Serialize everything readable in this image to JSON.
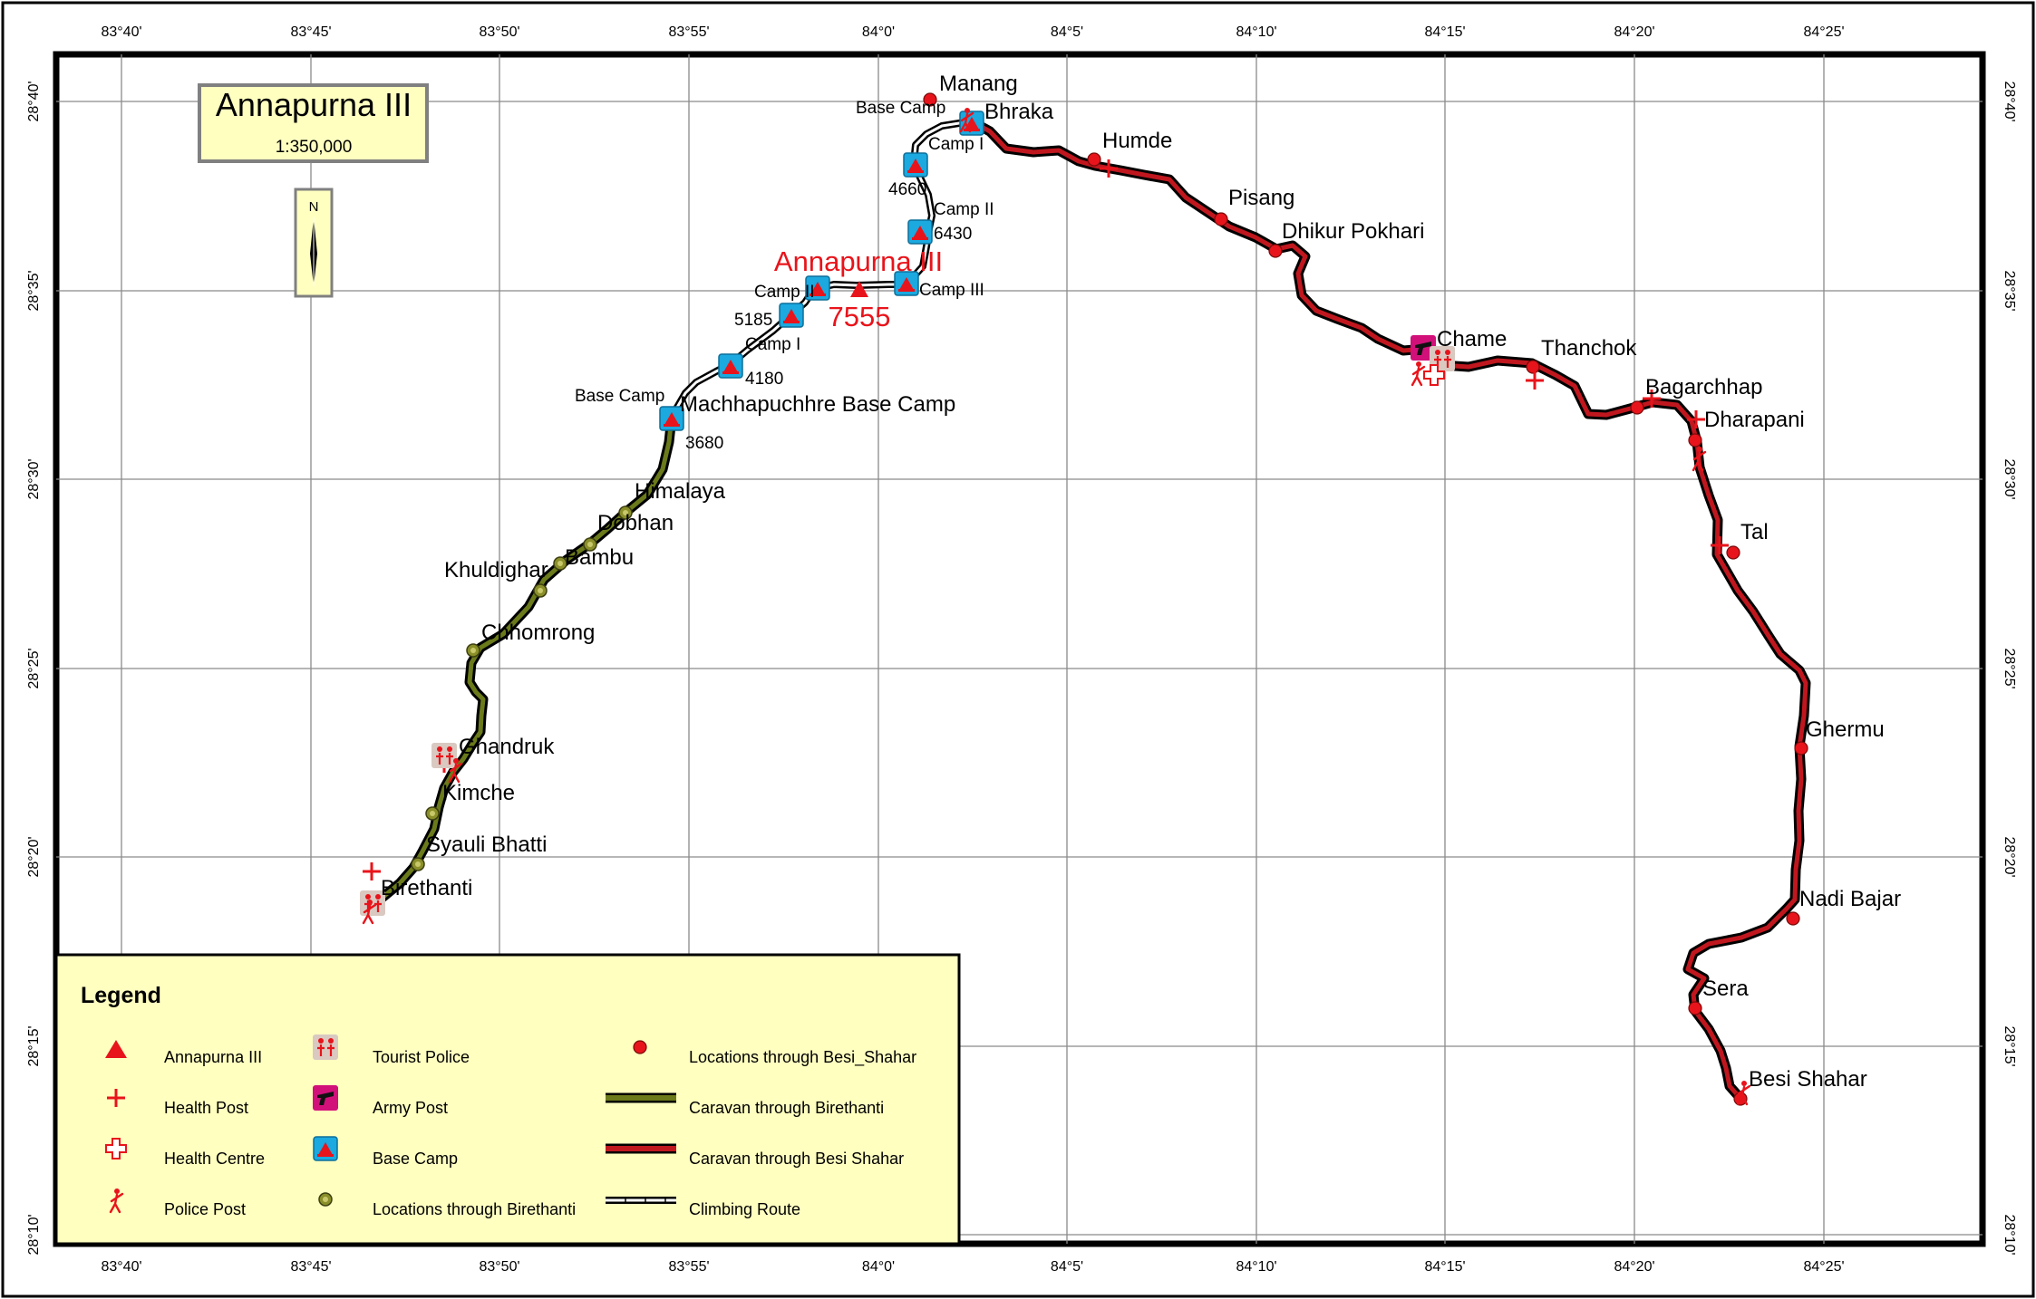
{
  "title": {
    "name": "Annapurna III",
    "scale": "1:350,000",
    "north": "N"
  },
  "colors": {
    "frame": "#000000",
    "grid": "#8a8a8a",
    "legend_bg": "#ffffc0",
    "red": "#e8141b",
    "route_besi": "#c0171f",
    "route_birethanti": "#6b7a1a",
    "base_camp_blue": "#1ba9e0",
    "army_magenta": "#d1107a",
    "tourist_police_bg": "#d9c9c1"
  },
  "axes": {
    "top_labels": [
      "83°40'",
      "83°45'",
      "83°50'",
      "83°55'",
      "84°0'",
      "84°5'",
      "84°10'",
      "84°15'",
      "84°20'",
      "84°25'"
    ],
    "bottom_labels": [
      "83°40'",
      "83°45'",
      "83°50'",
      "83°55'",
      "84°0'",
      "84°5'",
      "84°10'",
      "84°15'",
      "84°20'",
      "84°25'"
    ],
    "left_labels": [
      "28°40'",
      "28°35'",
      "28°30'",
      "28°25'",
      "28°20'",
      "28°15'",
      "28°10'"
    ],
    "right_labels": [
      "28°40'",
      "28°35'",
      "28°30'",
      "28°25'",
      "28°20'",
      "28°15'",
      "28°10'"
    ]
  },
  "peak": {
    "name": "Annapurna III",
    "elevation": "7555"
  },
  "besi_locations": [
    "Manang",
    "Bhraka",
    "Humde",
    "Pisang",
    "Dhikur Pokhari",
    "Chame",
    "Thanchok",
    "Bagarchhap",
    "Dharapani",
    "Tal",
    "Ghermu",
    "Nadi Bajar",
    "Sera",
    "Besi Shahar"
  ],
  "birethanti_locations": [
    "Machhapuchhre Base Camp",
    "Himalaya",
    "Dobhan",
    "Bambu",
    "Khuldighar",
    "Chhomrong",
    "Ghandruk",
    "Kimche",
    "Syauli Bhatti",
    "Birethanti"
  ],
  "camps": {
    "north_base_camp": "Base Camp",
    "north_camp_1": "Camp I",
    "north_camp_1_elev": "4660",
    "north_camp_2": "Camp II",
    "north_camp_2_elev": "6430",
    "north_camp_3": "Camp III",
    "south_base_camp": "Base Camp",
    "south_base_camp_elev": "3680",
    "south_camp_1": "Camp I",
    "south_camp_1_elev": "4180",
    "south_camp_2": "Camp II",
    "south_camp_2_elev": "5185"
  },
  "legend": {
    "title": "Legend",
    "items": [
      {
        "symbol": "peak-triangle-icon",
        "label": "Annapurna III"
      },
      {
        "symbol": "health-post-cross-icon",
        "label": "Health Post"
      },
      {
        "symbol": "health-centre-cross-icon",
        "label": "Health Centre"
      },
      {
        "symbol": "police-post-icon",
        "label": "Police Post"
      },
      {
        "symbol": "tourist-police-icon",
        "label": "Tourist Police"
      },
      {
        "symbol": "army-post-icon",
        "label": "Army Post"
      },
      {
        "symbol": "base-camp-icon",
        "label": "Base Camp"
      },
      {
        "symbol": "birethanti-location-dot-icon",
        "label": "Locations through Birethanti"
      },
      {
        "symbol": "besi-location-dot-icon",
        "label": "Locations through Besi_Shahar"
      },
      {
        "symbol": "birethanti-route-line-icon",
        "label": "Caravan through Birethanti"
      },
      {
        "symbol": "besi-route-line-icon",
        "label": "Caravan through Besi Shahar"
      },
      {
        "symbol": "climbing-route-line-icon",
        "label": "Climbing Route"
      }
    ]
  }
}
